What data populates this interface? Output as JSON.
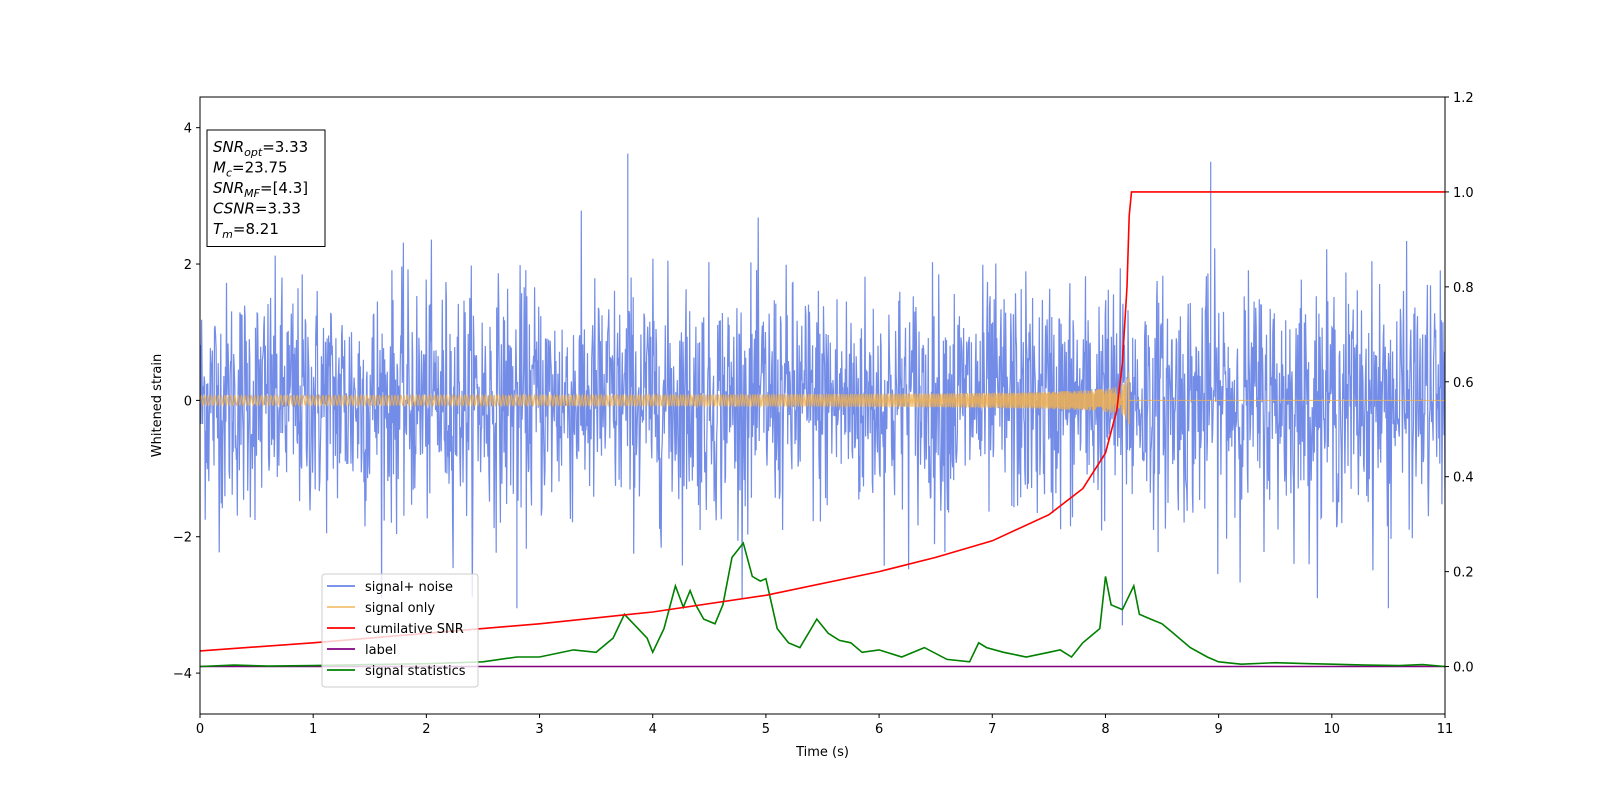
{
  "chart_data": {
    "type": "line",
    "xlabel": "Time (s)",
    "ylabel": "Whitened strain",
    "xlim": [
      0,
      11
    ],
    "ylim": [
      -4.6,
      4.45
    ],
    "y2lim": [
      -0.1,
      1.2
    ],
    "x_ticks": [
      "0",
      "1",
      "2",
      "3",
      "4",
      "5",
      "6",
      "7",
      "8",
      "9",
      "10",
      "11"
    ],
    "y_ticks": [
      "−4",
      "−2",
      "0",
      "2",
      "4"
    ],
    "y2_ticks": [
      "0.0",
      "0.2",
      "0.4",
      "0.6",
      "0.8",
      "1.0",
      "1.2"
    ],
    "grid": false,
    "legend_position": "lower-left",
    "info_box": {
      "lines": [
        {
          "base": "SNR",
          "sub": "opt",
          "value": "=3.33"
        },
        {
          "base": "M",
          "sub": "c",
          "value": "=23.75"
        },
        {
          "base": "SNR",
          "sub": "MF",
          "value": "=[4.3]"
        },
        {
          "base": "CSNR",
          "sub": "",
          "value": "=3.33"
        },
        {
          "base": "T",
          "sub": "m",
          "value": "=8.21"
        }
      ]
    },
    "series": [
      {
        "name": "signal+ noise",
        "axis": "left",
        "color": "#6a86e6",
        "kind": "noise",
        "envelope": [
          -2.9,
          3.65
        ],
        "peaks": [
          [
            3.78,
            3.62
          ],
          [
            8.93,
            3.5
          ],
          [
            8.15,
            -3.3
          ],
          [
            2.8,
            -3.05
          ],
          [
            10.5,
            -3.05
          ]
        ]
      },
      {
        "name": "signal only",
        "axis": "left",
        "color": "#f0b050",
        "kind": "chirp",
        "merger_time": 8.21,
        "peak_amplitude": 0.6
      },
      {
        "name": "cumilative SNR",
        "axis": "right",
        "color": "#ff0000",
        "x": [
          0,
          1,
          2,
          3,
          4,
          5,
          6,
          6.5,
          7,
          7.5,
          7.8,
          8.0,
          8.1,
          8.15,
          8.19,
          8.21,
          8.23,
          11
        ],
        "y": [
          0.033,
          0.05,
          0.07,
          0.09,
          0.115,
          0.15,
          0.2,
          0.23,
          0.265,
          0.32,
          0.375,
          0.45,
          0.54,
          0.64,
          0.8,
          0.95,
          1.0,
          1.0
        ]
      },
      {
        "name": "label",
        "axis": "right",
        "color": "#800080",
        "x": [
          0,
          11
        ],
        "y": [
          0,
          0
        ]
      },
      {
        "name": "signal statistics",
        "axis": "right",
        "color": "#008000",
        "x": [
          0,
          0.3,
          0.6,
          1.0,
          1.5,
          2.0,
          2.5,
          2.8,
          3.0,
          3.3,
          3.5,
          3.65,
          3.75,
          3.85,
          3.95,
          4.0,
          4.1,
          4.2,
          4.27,
          4.33,
          4.38,
          4.45,
          4.55,
          4.62,
          4.7,
          4.8,
          4.88,
          4.95,
          5.0,
          5.1,
          5.2,
          5.3,
          5.4,
          5.45,
          5.55,
          5.65,
          5.75,
          5.85,
          6.0,
          6.2,
          6.4,
          6.6,
          6.8,
          6.88,
          6.95,
          7.1,
          7.3,
          7.5,
          7.6,
          7.7,
          7.8,
          7.95,
          8.0,
          8.05,
          8.15,
          8.25,
          8.3,
          8.4,
          8.5,
          8.6,
          8.75,
          8.9,
          9.0,
          9.2,
          9.5,
          9.8,
          10.0,
          10.3,
          10.6,
          10.8,
          11.0
        ],
        "y": [
          0.0,
          0.003,
          0.001,
          0.002,
          0.004,
          0.006,
          0.01,
          0.02,
          0.02,
          0.035,
          0.03,
          0.06,
          0.11,
          0.085,
          0.06,
          0.03,
          0.08,
          0.17,
          0.125,
          0.16,
          0.13,
          0.1,
          0.09,
          0.13,
          0.23,
          0.26,
          0.19,
          0.18,
          0.185,
          0.08,
          0.05,
          0.04,
          0.08,
          0.1,
          0.07,
          0.055,
          0.05,
          0.03,
          0.035,
          0.02,
          0.04,
          0.015,
          0.01,
          0.05,
          0.04,
          0.03,
          0.02,
          0.03,
          0.035,
          0.02,
          0.05,
          0.08,
          0.19,
          0.13,
          0.12,
          0.17,
          0.11,
          0.1,
          0.09,
          0.07,
          0.04,
          0.02,
          0.01,
          0.005,
          0.008,
          0.006,
          0.005,
          0.003,
          0.002,
          0.004,
          0.0
        ]
      }
    ]
  }
}
